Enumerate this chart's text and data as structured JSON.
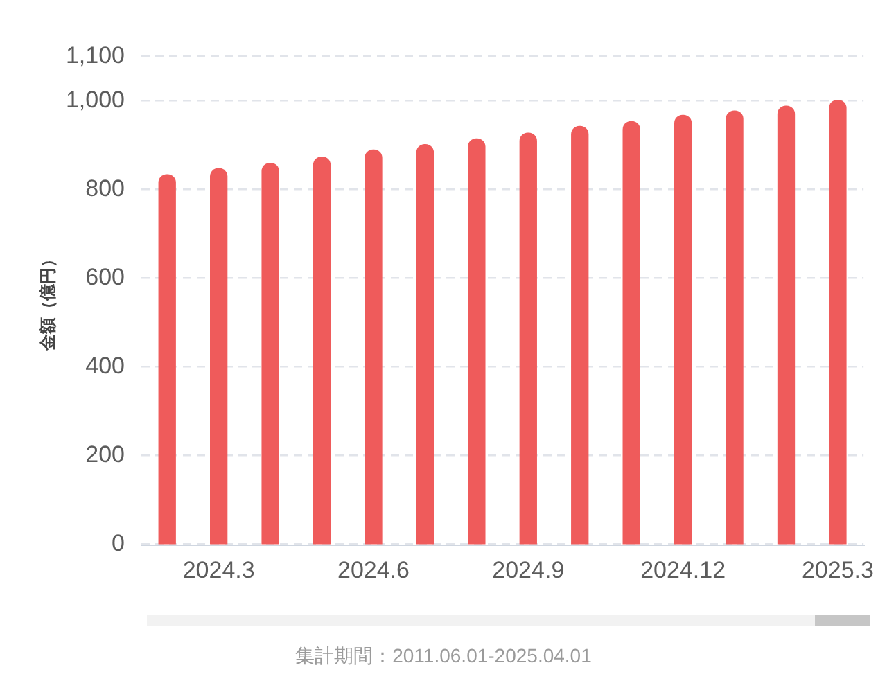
{
  "chart_data": {
    "type": "bar",
    "categories": [
      null,
      "2024.3",
      null,
      null,
      "2024.6",
      null,
      null,
      "2024.9",
      null,
      null,
      "2024.12",
      null,
      null,
      "2025.3"
    ],
    "values": [
      834,
      848,
      860,
      874,
      890,
      902,
      915,
      928,
      943,
      954,
      968,
      978,
      989,
      1002
    ],
    "color": "#ef5b5b",
    "ylabel": "金額（億円）",
    "ylim": [
      0,
      1100
    ],
    "yticks": [
      0,
      200,
      400,
      600,
      800,
      {
        "value": 1000,
        "label": "1,000"
      },
      {
        "value": 1100,
        "label": "1,100"
      }
    ],
    "grid": "y",
    "annotations": [
      "集計期間：2011.06.01-2025.04.01"
    ]
  }
}
